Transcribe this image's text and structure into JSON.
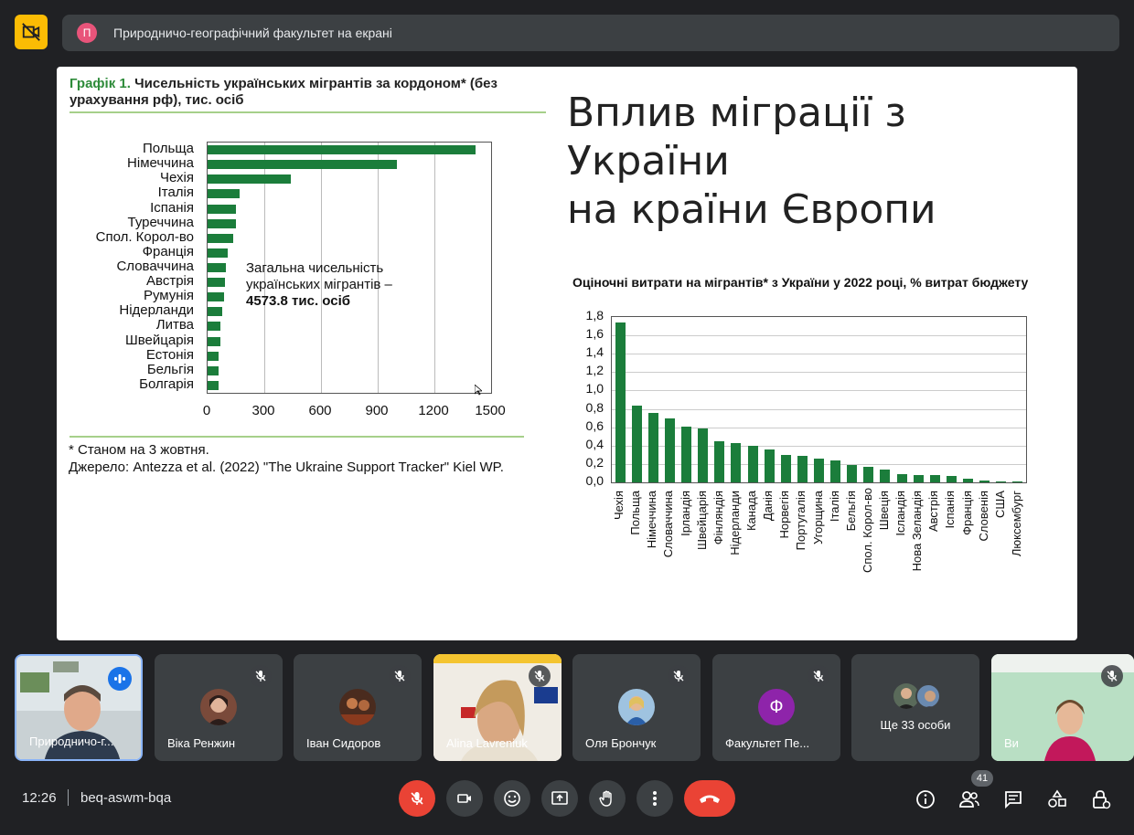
{
  "presentation": {
    "avatar_letter": "П",
    "text": "Природничо-географічний факультет на екрані"
  },
  "slide": {
    "title_line1": "Вплив міграції з України",
    "title_line2": "на країни Європи",
    "chart1": {
      "title_num": "Графік 1.",
      "title_rest": " Чисельність українських мігрантів за кордоном* (без урахування рф), тис. осіб",
      "note_line1": "Загальна чисельність",
      "note_line2": "українських мігрантів –",
      "note_value": "4573.8 тис. осіб",
      "footnote1": "* Станом на 3 жовтня.",
      "footnote2": "Джерело: Antezza et al. (2022) \"The Ukraine Support Tracker\" Kiel WP."
    },
    "chart2_title": "Оціночні витрати на мігрантів* з України у 2022 році, % витрат бюджету"
  },
  "chart_data": [
    {
      "type": "bar",
      "orientation": "horizontal",
      "categories": [
        "Польща",
        "Німеччина",
        "Чехія",
        "Італія",
        "Іспанія",
        "Туреччина",
        "Спол. Корол-во",
        "Франція",
        "Словаччина",
        "Австрія",
        "Румунія",
        "Нідерланди",
        "Литва",
        "Швейцарія",
        "Естонія",
        "Бельгія",
        "Болгарія"
      ],
      "values": [
        1420,
        1000,
        440,
        170,
        150,
        148,
        135,
        105,
        98,
        90,
        85,
        78,
        70,
        66,
        60,
        58,
        56
      ],
      "xlim": [
        0,
        1500
      ],
      "xticks": [
        "0",
        "300",
        "600",
        "900",
        "1200",
        "1500"
      ],
      "grid": true,
      "color": "#1b7d3b"
    },
    {
      "type": "bar",
      "categories": [
        "Чехія",
        "Польща",
        "Німеччина",
        "Словаччина",
        "Ірландія",
        "Швейцарія",
        "Фінляндія",
        "Нідерланди",
        "Канада",
        "Данія",
        "Норвегія",
        "Португалія",
        "Угорщина",
        "Італія",
        "Бельгія",
        "Спол. Корол-во",
        "Швеція",
        "Ісландія",
        "Нова Зеландія",
        "Австрія",
        "Іспанія",
        "Франція",
        "Словенія",
        "США",
        "Люксембург"
      ],
      "values": [
        1.74,
        0.84,
        0.76,
        0.7,
        0.61,
        0.59,
        0.45,
        0.43,
        0.4,
        0.36,
        0.3,
        0.29,
        0.26,
        0.24,
        0.19,
        0.17,
        0.14,
        0.09,
        0.08,
        0.08,
        0.07,
        0.04,
        0.02,
        0.01,
        0.005
      ],
      "ylim": [
        0,
        1.8
      ],
      "yticks": [
        "0,0",
        "0,2",
        "0,4",
        "0,6",
        "0,8",
        "1,0",
        "1,2",
        "1,4",
        "1,6",
        "1,8"
      ],
      "grid": true,
      "color": "#1b7d3b"
    }
  ],
  "participants": [
    {
      "name": "Природничо-г...",
      "speaking": true
    },
    {
      "name": "Віка Ренжин",
      "muted": true
    },
    {
      "name": "Іван Сидоров",
      "muted": true
    },
    {
      "name": "Alina Lavreniuk",
      "muted": true
    },
    {
      "name": "Оля Брончук",
      "muted": true
    },
    {
      "name": "Факультет Пе...",
      "avatar_letter": "Ф",
      "muted": true
    },
    {
      "name": "Ще 33 особи"
    },
    {
      "name": "Ви",
      "muted": true
    }
  ],
  "bottom": {
    "time": "12:26",
    "meeting_code": "beq-aswm-bqa",
    "people_count": "41"
  },
  "colors": {
    "accent_yellow": "#fbbc04",
    "red": "#ea4335",
    "bar_green": "#1b7d3b",
    "face_avatar": "#8e24aa"
  }
}
